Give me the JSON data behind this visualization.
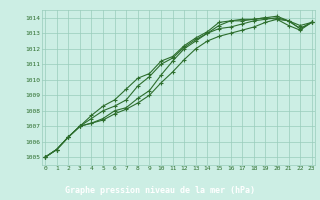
{
  "title": "Graphe pression niveau de la mer (hPa)",
  "bg_color": "#cceee4",
  "plot_bg_color": "#cceee4",
  "footer_bg": "#2d6e2d",
  "grid_color": "#99ccbb",
  "line_color": "#2d6e2d",
  "x_ticks": [
    0,
    1,
    2,
    3,
    4,
    5,
    6,
    7,
    8,
    9,
    10,
    11,
    12,
    13,
    14,
    15,
    16,
    17,
    18,
    19,
    20,
    21,
    22,
    23
  ],
  "ylim": [
    1004.5,
    1014.5
  ],
  "yticks": [
    1005,
    1006,
    1007,
    1008,
    1009,
    1010,
    1011,
    1012,
    1013,
    1014
  ],
  "series": [
    [
      1005.0,
      1005.5,
      1006.3,
      1007.0,
      1007.7,
      1008.3,
      1008.7,
      1009.4,
      1010.1,
      1010.4,
      1011.2,
      1011.5,
      1012.2,
      1012.7,
      1013.1,
      1013.7,
      1013.8,
      1013.9,
      1013.9,
      1014.0,
      1014.1,
      1013.8,
      1013.5,
      1013.7
    ],
    [
      1005.0,
      1005.5,
      1006.3,
      1007.0,
      1007.5,
      1008.0,
      1008.3,
      1008.7,
      1009.6,
      1010.2,
      1011.0,
      1011.4,
      1012.1,
      1012.6,
      1013.0,
      1013.5,
      1013.8,
      1013.8,
      1013.9,
      1014.0,
      1013.9,
      1013.5,
      1013.2,
      1013.7
    ],
    [
      1005.0,
      1005.5,
      1006.3,
      1007.0,
      1007.2,
      1007.5,
      1008.0,
      1008.2,
      1008.8,
      1009.3,
      1010.3,
      1011.2,
      1012.0,
      1012.5,
      1013.0,
      1013.3,
      1013.4,
      1013.6,
      1013.8,
      1013.9,
      1014.0,
      1013.8,
      1013.3,
      1013.7
    ],
    [
      1005.0,
      1005.5,
      1006.3,
      1007.0,
      1007.2,
      1007.4,
      1007.8,
      1008.1,
      1008.5,
      1009.0,
      1009.8,
      1010.5,
      1011.3,
      1012.0,
      1012.5,
      1012.8,
      1013.0,
      1013.2,
      1013.4,
      1013.7,
      1013.9,
      1013.8,
      1013.3,
      1013.7
    ]
  ]
}
